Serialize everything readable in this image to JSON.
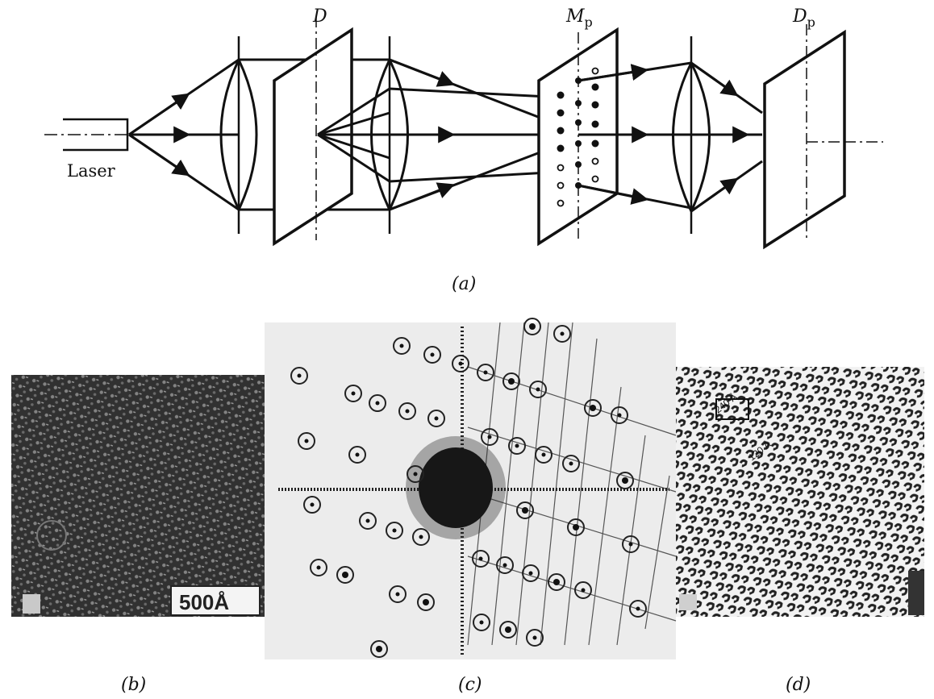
{
  "schematic": {
    "light_source_label": "Laser",
    "aperture_label_main": "D",
    "mask_label_main": "M",
    "mask_label_sub": "p",
    "image_plane_label_main": "D",
    "image_plane_label_sub": "p",
    "caption": "(a)"
  },
  "panels": {
    "micrograph_caption": "(b)",
    "diffraction_caption": "(c)",
    "filtered_caption": "(d)",
    "scale_bar_label": "500Å",
    "inset_label_long": "240 Å",
    "inset_label_short": "120 Å"
  }
}
